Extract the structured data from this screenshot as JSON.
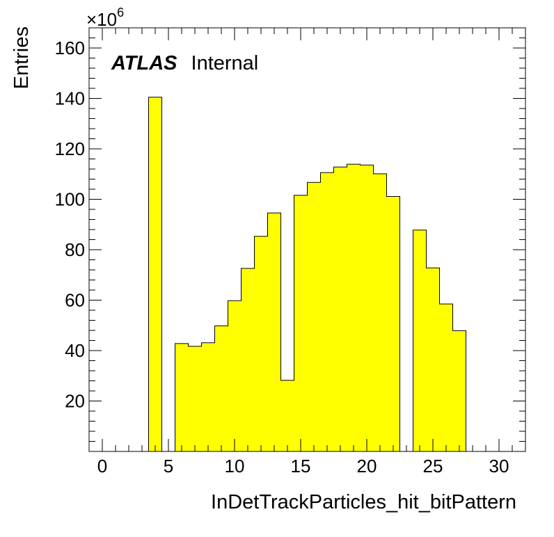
{
  "chart_data": {
    "type": "bar",
    "histogram": true,
    "bin_width": 1,
    "xlim": [
      -1,
      32
    ],
    "ylim": [
      0,
      168
    ],
    "x_ticks": [
      0,
      5,
      10,
      15,
      20,
      25,
      30
    ],
    "y_ticks": [
      20,
      40,
      60,
      80,
      100,
      120,
      140,
      160
    ],
    "xlabel": "InDetTrackParticles_hit_bitPattern",
    "ylabel": "Entries",
    "y_multiplier": "×10",
    "y_multiplier_exp": "6",
    "label_bold": "ATLAS",
    "label_rest": "Internal",
    "fill_color": "#ffff00",
    "line_color": "#000000",
    "bins": [
      {
        "x": 4,
        "y": 140.5
      },
      {
        "x": 6,
        "y": 42.8
      },
      {
        "x": 7,
        "y": 41.7
      },
      {
        "x": 8,
        "y": 43.1
      },
      {
        "x": 9,
        "y": 49.8
      },
      {
        "x": 10,
        "y": 59.8
      },
      {
        "x": 11,
        "y": 72.6
      },
      {
        "x": 12,
        "y": 85.3
      },
      {
        "x": 13,
        "y": 94.6
      },
      {
        "x": 14,
        "y": 28.2
      },
      {
        "x": 15,
        "y": 101.6
      },
      {
        "x": 16,
        "y": 106.7
      },
      {
        "x": 17,
        "y": 110.6
      },
      {
        "x": 18,
        "y": 112.8
      },
      {
        "x": 19,
        "y": 113.9
      },
      {
        "x": 20,
        "y": 113.6
      },
      {
        "x": 21,
        "y": 110.1
      },
      {
        "x": 22,
        "y": 101.1
      },
      {
        "x": 24,
        "y": 87.8
      },
      {
        "x": 25,
        "y": 72.8
      },
      {
        "x": 26,
        "y": 58.5
      },
      {
        "x": 27,
        "y": 47.9
      }
    ]
  }
}
